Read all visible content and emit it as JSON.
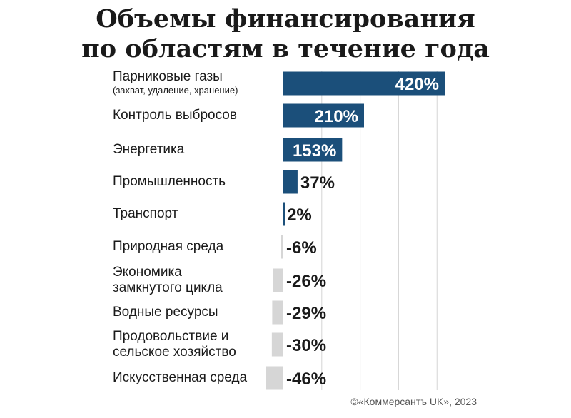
{
  "title_lines": [
    "Объемы финансирования",
    "по областям в течение года"
  ],
  "source": "©«Коммерсантъ UK», 2023",
  "colors": {
    "positive": "#1b4f7a",
    "negative": "#d6d6d6",
    "grid": "#d4d4d4",
    "text": "#1a1a1a",
    "label_inside": "#ffffff"
  },
  "chart_data": {
    "type": "bar",
    "orientation": "horizontal",
    "title": "Объемы финансирования по областям в течение года",
    "unit": "%",
    "grid": true,
    "xlim": [
      -50,
      450
    ],
    "categories": [
      {
        "label": "Парниковые газы",
        "sub": "(захват, удаление, хранение)"
      },
      {
        "label": "Контроль выбросов"
      },
      {
        "label": "Энергетика"
      },
      {
        "label": "Промышленность"
      },
      {
        "label": "Транспорт"
      },
      {
        "label": "Природная среда"
      },
      {
        "label": "Экономика\nзамкнутого цикла"
      },
      {
        "label": "Водные ресурсы"
      },
      {
        "label": "Продовольствие и\nсельское хозяйство"
      },
      {
        "label": "Искусственная среда"
      }
    ],
    "values": [
      420,
      210,
      153,
      37,
      2,
      -6,
      -26,
      -29,
      -30,
      -46
    ],
    "value_labels": [
      "420%",
      "210%",
      "153%",
      "37%",
      "2%",
      "-6%",
      "-26%",
      "-29%",
      "-30%",
      "-46%"
    ]
  }
}
